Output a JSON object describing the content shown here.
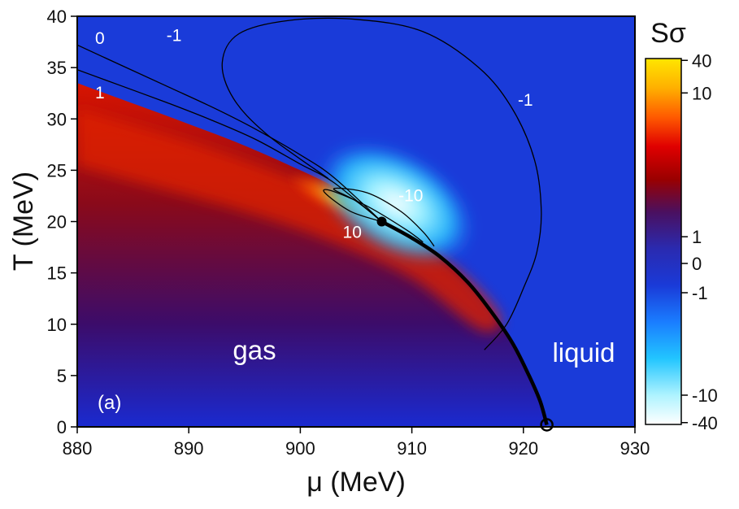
{
  "chart_data": {
    "type": "heatmap",
    "xlabel": "μ (MeV)",
    "ylabel": "T (MeV)",
    "xlim": [
      880,
      930
    ],
    "ylim": [
      0,
      40
    ],
    "x_ticks": [
      880,
      890,
      900,
      910,
      920,
      930
    ],
    "y_ticks": [
      0,
      5,
      10,
      15,
      20,
      25,
      30,
      35,
      40
    ],
    "panel_label": "(a)",
    "region_labels": {
      "gas": "gas",
      "liquid": "liquid"
    },
    "colorbar": {
      "title": "Sσ",
      "ticks": [
        {
          "label": "40",
          "value": 40
        },
        {
          "label": "10",
          "value": 10
        },
        {
          "label": "1",
          "value": 1
        },
        {
          "label": "0",
          "value": 0
        },
        {
          "label": "-1",
          "value": -1
        },
        {
          "label": "-10",
          "value": -10
        },
        {
          "label": "-40",
          "value": -40
        }
      ]
    },
    "critical_point": {
      "mu": 907.3,
      "T": 20.0
    },
    "endpoint": {
      "mu": 922.1,
      "T": 0.2
    },
    "phase_boundary": [
      [
        907.3,
        20.0
      ],
      [
        910.0,
        18.4
      ],
      [
        912.5,
        16.6
      ],
      [
        915.0,
        14.1
      ],
      [
        917.0,
        11.4
      ],
      [
        919.0,
        8.2
      ],
      [
        920.5,
        5.0
      ],
      [
        921.5,
        2.5
      ],
      [
        922.1,
        0.2
      ]
    ],
    "spinodal_curve": [
      [
        880.0,
        33.5
      ],
      [
        885.0,
        31.5
      ],
      [
        890.0,
        29.5
      ],
      [
        895.0,
        27.4
      ],
      [
        900.0,
        25.0
      ],
      [
        903.0,
        23.4
      ],
      [
        905.0,
        22.1
      ],
      [
        907.3,
        20.0
      ]
    ],
    "contours": [
      {
        "level": "0",
        "label": "0",
        "label_at": [
          881.6,
          37.3
        ],
        "points": [
          [
            880.0,
            37.2
          ],
          [
            884.0,
            35.2
          ],
          [
            888.0,
            33.2
          ],
          [
            892.0,
            31.2
          ],
          [
            896.0,
            29.0
          ],
          [
            900.0,
            26.5
          ],
          [
            903.0,
            24.3
          ],
          [
            907.3,
            20.0
          ]
        ]
      },
      {
        "level": "1",
        "label": "1",
        "label_at": [
          881.6,
          32.0
        ],
        "points": [
          [
            880.0,
            34.8
          ],
          [
            884.0,
            33.2
          ],
          [
            888.0,
            31.6
          ],
          [
            892.0,
            29.9
          ],
          [
            896.0,
            28.0
          ],
          [
            900.0,
            25.6
          ],
          [
            903.0,
            23.8
          ],
          [
            907.3,
            20.0
          ]
        ]
      },
      {
        "level": "-1",
        "label": "-1",
        "label_at": [
          888.0,
          37.6
        ],
        "label2": "-1",
        "label2_at": [
          919.5,
          31.3
        ],
        "points": [
          [
            902.5,
            24.2
          ],
          [
            897.0,
            28.5
          ],
          [
            894.0,
            32.0
          ],
          [
            893.0,
            35.5
          ],
          [
            894.5,
            38.3
          ],
          [
            899.0,
            39.6
          ],
          [
            905.0,
            39.7
          ],
          [
            911.0,
            38.5
          ],
          [
            916.0,
            35.0
          ],
          [
            919.0,
            31.0
          ],
          [
            921.0,
            26.0
          ],
          [
            921.6,
            21.0
          ],
          [
            921.2,
            17.0
          ],
          [
            920.0,
            13.5
          ],
          [
            918.5,
            10.0
          ],
          [
            916.5,
            7.5
          ]
        ]
      },
      {
        "level": "10",
        "label": "10",
        "label_at": [
          903.8,
          18.4
        ],
        "points": [
          [
            907.3,
            20.0
          ],
          [
            904.5,
            21.0
          ],
          [
            902.2,
            22.8
          ],
          [
            902.8,
            23.0
          ],
          [
            906.0,
            21.5
          ],
          [
            909.5,
            19.2
          ],
          [
            911.0,
            18.0
          ]
        ]
      },
      {
        "level": "-10",
        "label": "-10",
        "label_at": [
          908.8,
          22.0
        ],
        "points": [
          [
            907.3,
            20.0
          ],
          [
            905.0,
            22.0
          ],
          [
            903.0,
            23.2
          ],
          [
            906.0,
            22.8
          ],
          [
            909.0,
            21.0
          ],
          [
            911.0,
            19.0
          ],
          [
            912.0,
            17.6
          ]
        ]
      }
    ],
    "colors": {
      "background": "#1a3bd9",
      "liquid_side": "#0b36d8",
      "gas_positive_strong": "#ffd400",
      "gas_positive_mid": "#ff6a00",
      "gas_positive_low": "#c00000",
      "gas_positive_faint": "#4a0d63",
      "negative_mid": "#2fd2ff",
      "negative_strong": "#ffffff",
      "contour_line": "#000000"
    }
  }
}
